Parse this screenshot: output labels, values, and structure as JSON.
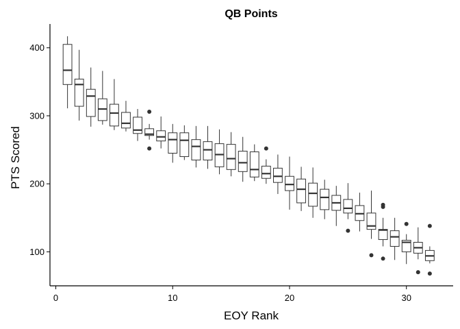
{
  "chart_data": {
    "type": "boxplot",
    "title": "QB Points",
    "xlabel": "EOY Rank",
    "ylabel": "PTS Scored",
    "xlim": [
      -0.5,
      34
    ],
    "ylim": [
      50,
      435
    ],
    "xticks": [
      0,
      10,
      20,
      30
    ],
    "yticks": [
      100,
      200,
      300,
      400
    ],
    "grid": false,
    "legend": "none",
    "colors": {
      "box_fill": "#ffffff",
      "box_stroke": "#333333",
      "median": "#333333",
      "outlier": "#333333",
      "axis": "#000000"
    },
    "boxes": [
      {
        "x": 1,
        "min": 311,
        "q1": 346,
        "median": 367,
        "q3": 405,
        "max": 417,
        "outliers": []
      },
      {
        "x": 2,
        "min": 293,
        "q1": 314,
        "median": 346,
        "q3": 354,
        "max": 397,
        "outliers": []
      },
      {
        "x": 3,
        "min": 284,
        "q1": 299,
        "median": 329,
        "q3": 339,
        "max": 371,
        "outliers": []
      },
      {
        "x": 4,
        "min": 287,
        "q1": 293,
        "median": 310,
        "q3": 325,
        "max": 366,
        "outliers": []
      },
      {
        "x": 5,
        "min": 279,
        "q1": 285,
        "median": 304,
        "q3": 317,
        "max": 354,
        "outliers": []
      },
      {
        "x": 6,
        "min": 277,
        "q1": 282,
        "median": 289,
        "q3": 305,
        "max": 322,
        "outliers": []
      },
      {
        "x": 7,
        "min": 263,
        "q1": 274,
        "median": 279,
        "q3": 298,
        "max": 310,
        "outliers": []
      },
      {
        "x": 8,
        "min": 265,
        "q1": 271,
        "median": 273,
        "q3": 281,
        "max": 288,
        "outliers": [
          252,
          306
        ]
      },
      {
        "x": 9,
        "min": 252,
        "q1": 263,
        "median": 269,
        "q3": 278,
        "max": 299,
        "outliers": []
      },
      {
        "x": 10,
        "min": 231,
        "q1": 245,
        "median": 265,
        "q3": 275,
        "max": 288,
        "outliers": []
      },
      {
        "x": 11,
        "min": 235,
        "q1": 240,
        "median": 264,
        "q3": 275,
        "max": 286,
        "outliers": []
      },
      {
        "x": 12,
        "min": 224,
        "q1": 235,
        "median": 255,
        "q3": 265,
        "max": 285,
        "outliers": []
      },
      {
        "x": 13,
        "min": 222,
        "q1": 235,
        "median": 250,
        "q3": 262,
        "max": 285,
        "outliers": []
      },
      {
        "x": 14,
        "min": 214,
        "q1": 225,
        "median": 243,
        "q3": 259,
        "max": 280,
        "outliers": []
      },
      {
        "x": 15,
        "min": 211,
        "q1": 221,
        "median": 237,
        "q3": 258,
        "max": 276,
        "outliers": []
      },
      {
        "x": 16,
        "min": 203,
        "q1": 218,
        "median": 231,
        "q3": 248,
        "max": 269,
        "outliers": []
      },
      {
        "x": 17,
        "min": 204,
        "q1": 210,
        "median": 221,
        "q3": 247,
        "max": 258,
        "outliers": []
      },
      {
        "x": 18,
        "min": 200,
        "q1": 208,
        "median": 215,
        "q3": 226,
        "max": 236,
        "outliers": [
          252
        ]
      },
      {
        "x": 19,
        "min": 185,
        "q1": 202,
        "median": 211,
        "q3": 223,
        "max": 243,
        "outliers": []
      },
      {
        "x": 20,
        "min": 162,
        "q1": 190,
        "median": 199,
        "q3": 211,
        "max": 240,
        "outliers": []
      },
      {
        "x": 21,
        "min": 160,
        "q1": 172,
        "median": 192,
        "q3": 207,
        "max": 225,
        "outliers": []
      },
      {
        "x": 22,
        "min": 150,
        "q1": 167,
        "median": 186,
        "q3": 201,
        "max": 224,
        "outliers": []
      },
      {
        "x": 23,
        "min": 148,
        "q1": 162,
        "median": 180,
        "q3": 192,
        "max": 206,
        "outliers": []
      },
      {
        "x": 24,
        "min": 138,
        "q1": 161,
        "median": 172,
        "q3": 183,
        "max": 197,
        "outliers": []
      },
      {
        "x": 25,
        "min": 148,
        "q1": 157,
        "median": 164,
        "q3": 177,
        "max": 201,
        "outliers": [
          131
        ]
      },
      {
        "x": 26,
        "min": 130,
        "q1": 146,
        "median": 156,
        "q3": 168,
        "max": 187,
        "outliers": []
      },
      {
        "x": 27,
        "min": 119,
        "q1": 133,
        "median": 138,
        "q3": 157,
        "max": 190,
        "outliers": [
          95
        ]
      },
      {
        "x": 28,
        "min": 108,
        "q1": 118,
        "median": 132,
        "q3": 133,
        "max": 150,
        "outliers": [
          90,
          166,
          169
        ]
      },
      {
        "x": 29,
        "min": 88,
        "q1": 108,
        "median": 122,
        "q3": 131,
        "max": 150,
        "outliers": []
      },
      {
        "x": 30,
        "min": 82,
        "q1": 100,
        "median": 114,
        "q3": 117,
        "max": 126,
        "outliers": [
          141
        ]
      },
      {
        "x": 31,
        "min": 89,
        "q1": 98,
        "median": 106,
        "q3": 114,
        "max": 136,
        "outliers": [
          70
        ]
      },
      {
        "x": 32,
        "min": 83,
        "q1": 87,
        "median": 94,
        "q3": 102,
        "max": 108,
        "outliers": [
          68,
          138
        ]
      }
    ]
  }
}
